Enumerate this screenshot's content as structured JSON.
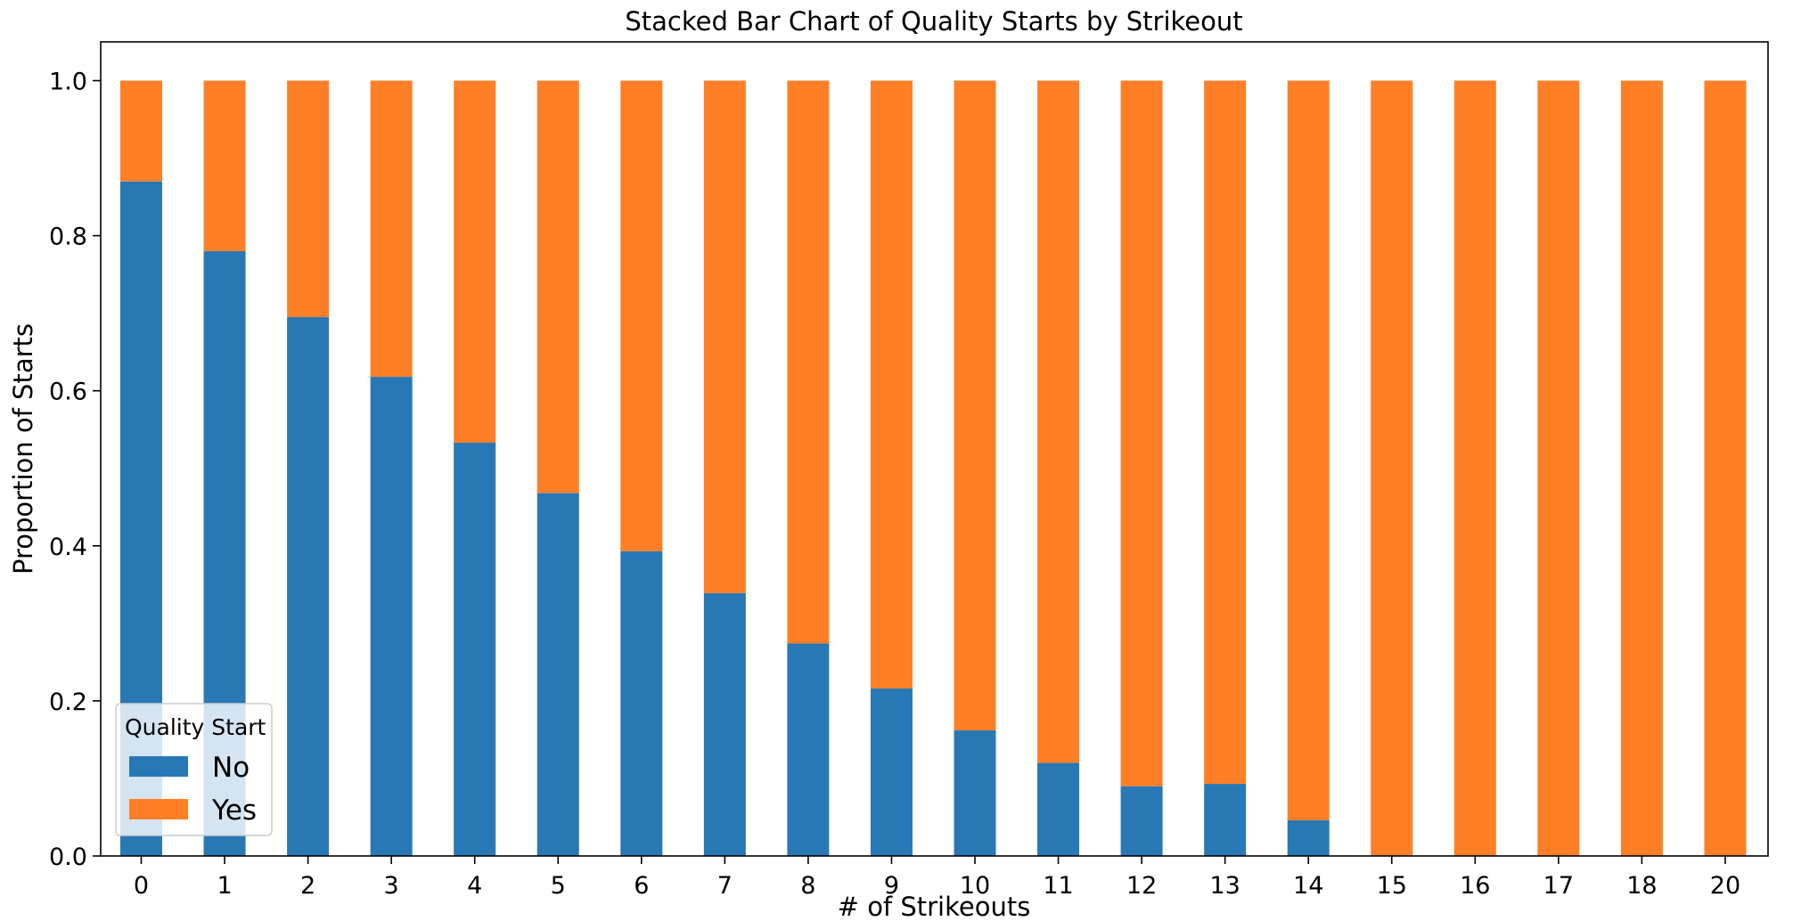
{
  "chart_data": {
    "type": "bar",
    "stacked": true,
    "title": "Stacked Bar Chart of Quality Starts by Strikeout",
    "xlabel": "# of Strikeouts",
    "ylabel": "Proportion of Starts",
    "categories": [
      "0",
      "1",
      "2",
      "3",
      "4",
      "5",
      "6",
      "7",
      "8",
      "9",
      "10",
      "11",
      "12",
      "13",
      "14",
      "15",
      "16",
      "17",
      "18",
      "20"
    ],
    "series": [
      {
        "name": "No",
        "color": "#2878b5",
        "values": [
          0.87,
          0.78,
          0.695,
          0.618,
          0.533,
          0.468,
          0.393,
          0.339,
          0.274,
          0.216,
          0.162,
          0.12,
          0.09,
          0.093,
          0.046,
          0,
          0,
          0,
          0,
          0
        ]
      },
      {
        "name": "Yes",
        "color": "#ff7f27",
        "values": [
          0.13,
          0.22,
          0.305,
          0.382,
          0.467,
          0.532,
          0.607,
          0.661,
          0.726,
          0.784,
          0.838,
          0.88,
          0.91,
          0.907,
          0.954,
          1,
          1,
          1,
          1,
          1
        ]
      }
    ],
    "ylim": [
      0,
      1.05
    ],
    "yticks": [
      "0.0",
      "0.2",
      "0.4",
      "0.6",
      "0.8",
      "1.0"
    ],
    "legend": {
      "title": "Quality Start",
      "placement": "lower-left"
    },
    "grid": false
  }
}
